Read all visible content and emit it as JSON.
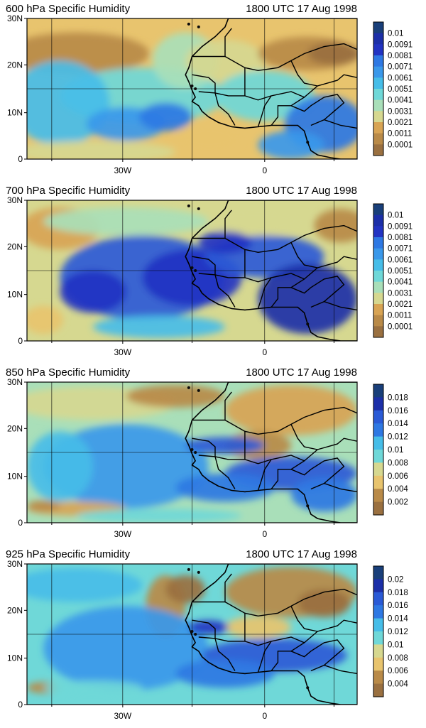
{
  "panels": [
    {
      "title": "600 hPa Specific Humidity",
      "time": "1800 UTC 17 Aug 1998",
      "lat_ticks": [
        "30N",
        "20N",
        "10N",
        "0"
      ],
      "lon_ticks": [
        "30W",
        "0"
      ],
      "colorbar_labels": [
        "0.01",
        "0.0091",
        "0.0081",
        "0.0071",
        "0.0061",
        "0.0051",
        "0.0041",
        "0.0031",
        "0.0021",
        "0.0011",
        "0.0001"
      ],
      "colorbar_levels": 11,
      "style": "dry"
    },
    {
      "title": "700 hPa Specific Humidity",
      "time": "1800 UTC 17 Aug 1998",
      "lat_ticks": [
        "30N",
        "20N",
        "10N",
        "0"
      ],
      "lon_ticks": [
        "30W",
        "0"
      ],
      "colorbar_labels": [
        "0.01",
        "0.0091",
        "0.0081",
        "0.0071",
        "0.0061",
        "0.0051",
        "0.0041",
        "0.0031",
        "0.0021",
        "0.0011",
        "0.0001"
      ],
      "colorbar_levels": 11,
      "style": "moist"
    },
    {
      "title": "850 hPa Specific Humidity",
      "time": "1800 UTC 17 Aug 1998",
      "lat_ticks": [
        "30N",
        "20N",
        "10N",
        "0"
      ],
      "lon_ticks": [
        "30W",
        "0"
      ],
      "colorbar_labels": [
        "0.018",
        "0.016",
        "0.014",
        "0.012",
        "0.01",
        "0.008",
        "0.006",
        "0.004",
        "0.002"
      ],
      "colorbar_levels": 9,
      "style": "low"
    },
    {
      "title": "925 hPa Specific Humidity",
      "time": "1800 UTC 17 Aug 1998",
      "lat_ticks": [
        "30N",
        "20N",
        "10N",
        "0"
      ],
      "lon_ticks": [
        "30W",
        "0"
      ],
      "colorbar_labels": [
        "0.02",
        "0.018",
        "0.016",
        "0.014",
        "0.012",
        "0.01",
        "0.008",
        "0.006",
        "0.004"
      ],
      "colorbar_levels": 9,
      "style": "low"
    }
  ],
  "colors": {
    "scale": [
      "#193f7a",
      "#1c2fa8",
      "#2233c2",
      "#2a5ad6",
      "#2e78e3",
      "#3a98ea",
      "#46bde8",
      "#6fd8d8",
      "#a9dfb9",
      "#d6d890",
      "#e8c46e",
      "#d8a454",
      "#b98a48",
      "#9a7040"
    ],
    "border": "#000000",
    "land_dark": "#0a0a0a"
  }
}
